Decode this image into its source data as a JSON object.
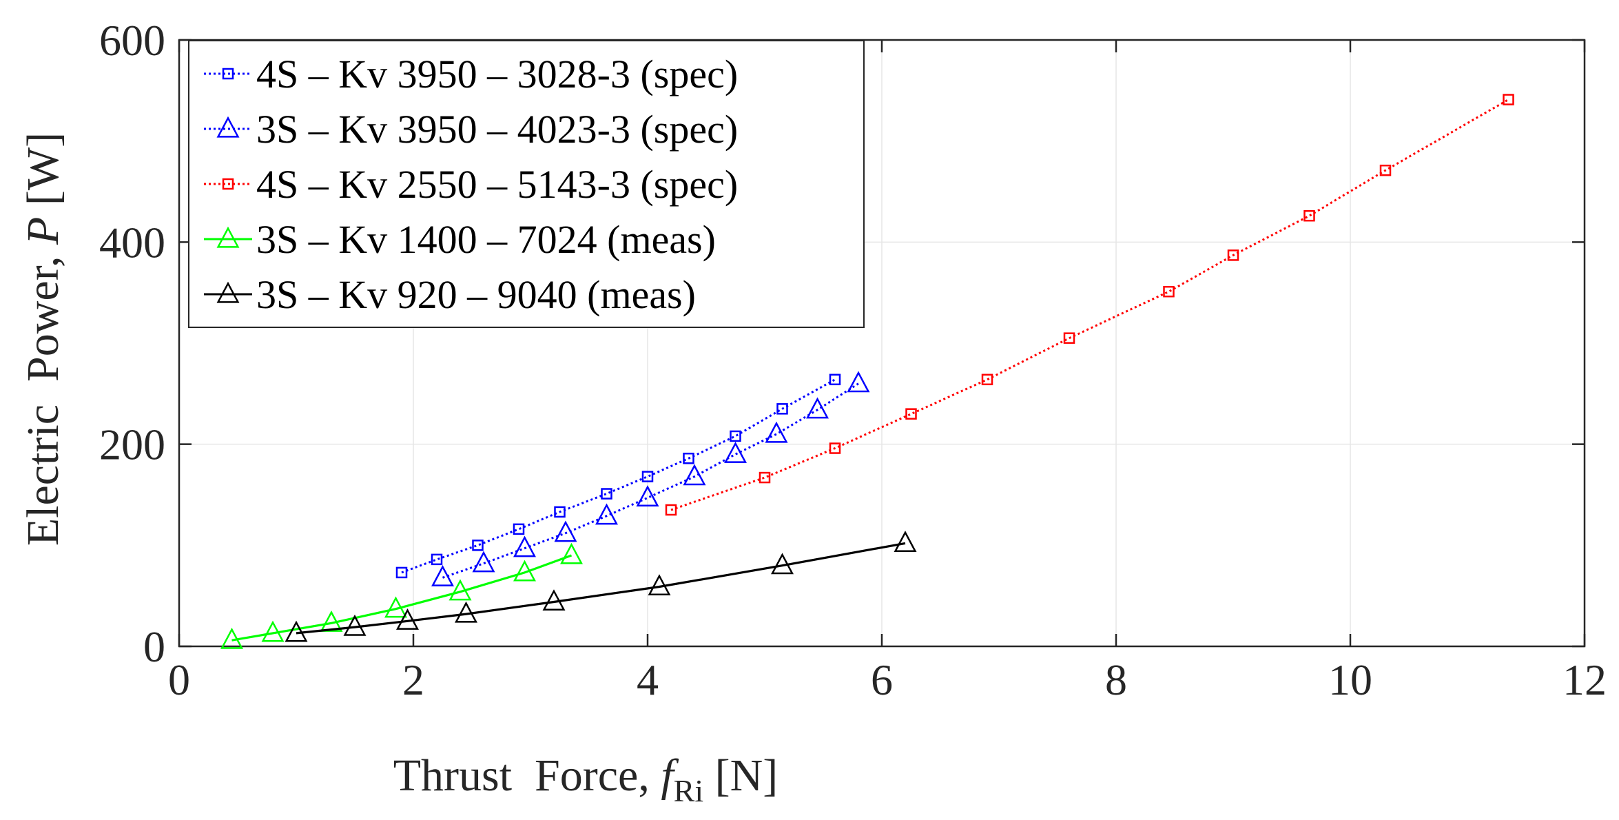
{
  "chart_data": {
    "type": "line",
    "title": "",
    "xlabel": {
      "prefix": "Thrust  Force, ",
      "symbol": "f",
      "subscript": "Ri",
      "unit": " [N]"
    },
    "ylabel": {
      "prefix": "Electric  Power, ",
      "symbol": "P",
      "unit": " [W]"
    },
    "xlim": [
      0,
      12
    ],
    "ylim": [
      0,
      600
    ],
    "xticks": [
      0,
      2,
      4,
      6,
      8,
      10,
      12
    ],
    "yticks": [
      0,
      200,
      400,
      600
    ],
    "xtick_labels": [
      "0",
      "2",
      "4",
      "6",
      "8",
      "10",
      "12"
    ],
    "ytick_labels": [
      "0",
      "200",
      "400",
      "600"
    ],
    "grid": true,
    "legend_position": "top-left",
    "series": [
      {
        "name": "4S – Kv 3950 – 3028-3 (spec)",
        "color": "#0000ff",
        "marker": "square",
        "line": "dotted",
        "x": [
          1.9,
          2.2,
          2.55,
          2.9,
          3.25,
          3.65,
          4.0,
          4.35,
          4.75,
          5.15,
          5.6
        ],
        "y": [
          73,
          86,
          100,
          116,
          133,
          151,
          168,
          186,
          208,
          235,
          264
        ]
      },
      {
        "name": "3S – Kv 3950 – 4023-3 (spec)",
        "color": "#0000ff",
        "marker": "triangle",
        "line": "dotted",
        "x": [
          2.25,
          2.6,
          2.95,
          3.3,
          3.65,
          4.0,
          4.4,
          4.75,
          5.1,
          5.45,
          5.8
        ],
        "y": [
          68,
          82,
          97,
          112,
          129,
          147,
          168,
          190,
          210,
          234,
          260
        ]
      },
      {
        "name": "4S – Kv 2550 – 5143-3 (spec)",
        "color": "#ff0000",
        "marker": "square",
        "line": "dotted",
        "x": [
          4.2,
          5.0,
          5.6,
          6.25,
          6.9,
          7.6,
          8.45,
          9.0,
          9.65,
          10.3,
          11.35
        ],
        "y": [
          135,
          167,
          196,
          230,
          264,
          305,
          351,
          387,
          426,
          471,
          541
        ]
      },
      {
        "name": "3S – Kv 1400 – 7024 (meas)",
        "color": "#00ff00",
        "marker": "triangle",
        "line": "solid",
        "x": [
          0.45,
          0.8,
          1.3,
          1.85,
          2.4,
          2.95,
          3.35
        ],
        "y": [
          6,
          13,
          23,
          37,
          54,
          73,
          90
        ]
      },
      {
        "name": "3S – Kv 920 – 9040 (meas)",
        "color": "#000000",
        "marker": "triangle",
        "line": "solid",
        "x": [
          1.0,
          1.5,
          1.95,
          2.45,
          3.2,
          4.1,
          5.15,
          6.2
        ],
        "y": [
          13,
          19,
          25,
          32,
          44,
          59,
          80,
          102
        ]
      }
    ]
  }
}
